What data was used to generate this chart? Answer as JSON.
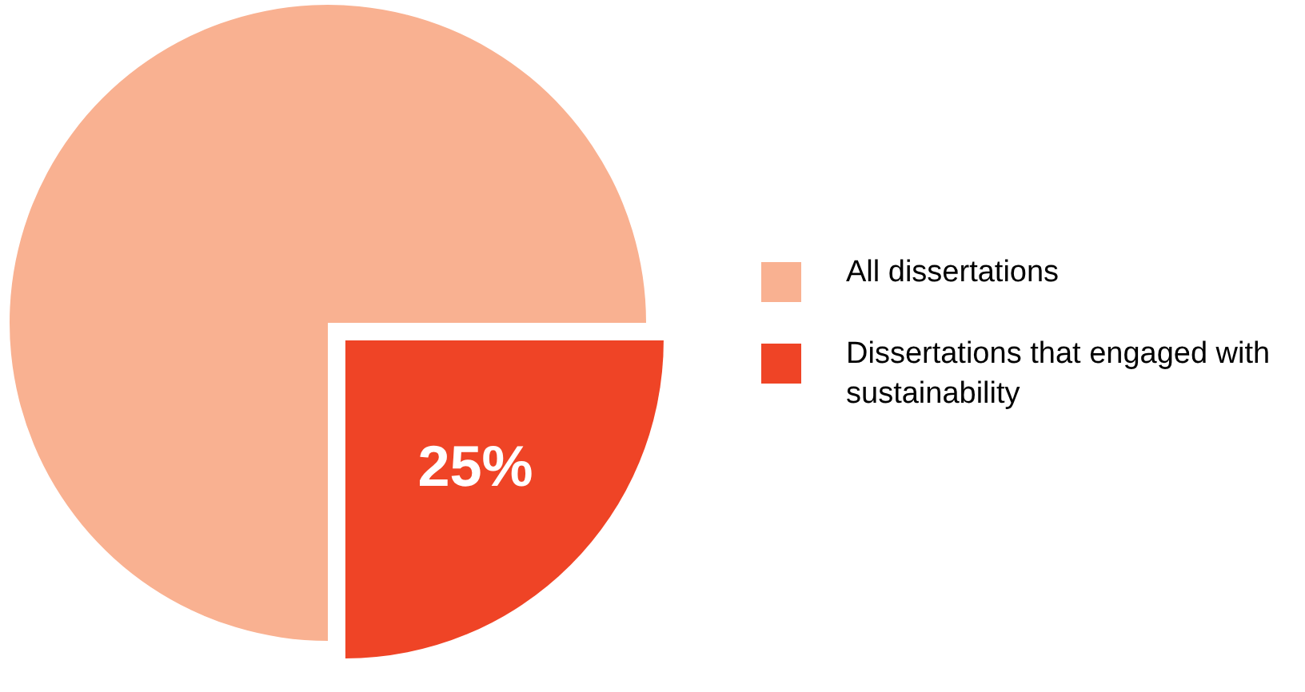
{
  "chart_data": {
    "type": "pie",
    "categories": [
      "All dissertations",
      "Dissertations that engaged with sustainability"
    ],
    "values": [
      75,
      25
    ],
    "colors": [
      "#f9b191",
      "#ef4426"
    ],
    "value_labels": [
      null,
      "25%"
    ],
    "legend": "right"
  }
}
